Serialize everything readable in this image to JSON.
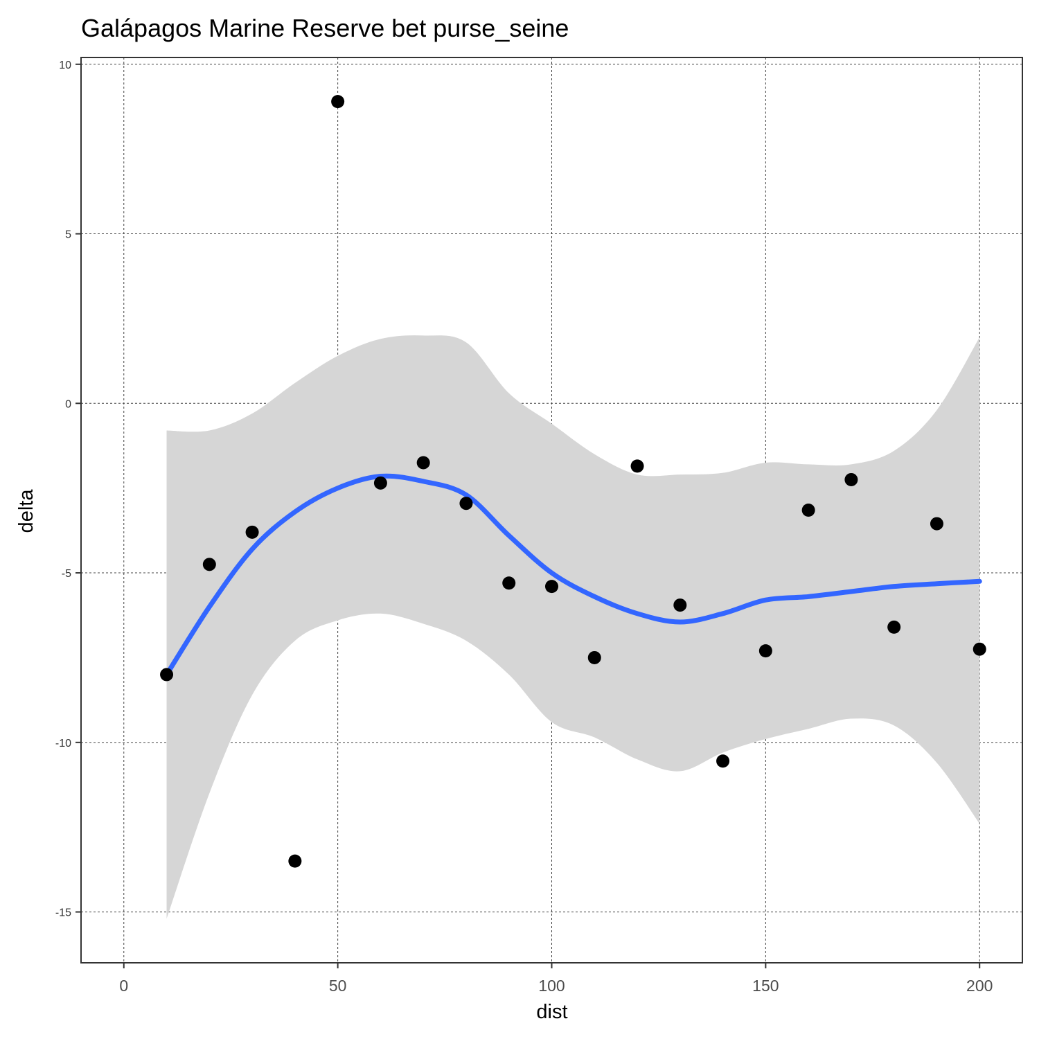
{
  "chart_data": {
    "type": "scatter",
    "title": "Galápagos Marine Reserve bet purse_seine",
    "xlabel": "dist",
    "ylabel": "delta",
    "xlim": [
      -10,
      210
    ],
    "ylim": [
      -16.5,
      10.2
    ],
    "x_ticks": [
      0,
      50,
      100,
      150,
      200
    ],
    "x_tick_labels": [
      "0",
      "50",
      "100",
      "150",
      "200"
    ],
    "y_ticks": [
      10,
      5,
      0,
      -5,
      -10,
      -15
    ],
    "y_tick_labels": [
      "10",
      "5",
      "0",
      "-5",
      "-10",
      "-15"
    ],
    "grid": true,
    "legend": "none",
    "colors": {
      "point": "#000000",
      "smooth_line": "#3366ff",
      "confidence_band": "#d6d6d6"
    },
    "points": [
      {
        "x": 10,
        "y": -8.0
      },
      {
        "x": 20,
        "y": -4.75
      },
      {
        "x": 30,
        "y": -3.8
      },
      {
        "x": 40,
        "y": -13.5
      },
      {
        "x": 50,
        "y": 8.9
      },
      {
        "x": 60,
        "y": -2.35
      },
      {
        "x": 70,
        "y": -1.75
      },
      {
        "x": 80,
        "y": -2.95
      },
      {
        "x": 90,
        "y": -5.3
      },
      {
        "x": 100,
        "y": -5.4
      },
      {
        "x": 110,
        "y": -7.5
      },
      {
        "x": 120,
        "y": -1.85
      },
      {
        "x": 130,
        "y": -5.95
      },
      {
        "x": 140,
        "y": -10.55
      },
      {
        "x": 150,
        "y": -7.3
      },
      {
        "x": 160,
        "y": -3.15
      },
      {
        "x": 170,
        "y": -2.25
      },
      {
        "x": 180,
        "y": -6.6
      },
      {
        "x": 190,
        "y": -3.55
      },
      {
        "x": 200,
        "y": -7.25
      }
    ],
    "smooth": [
      {
        "x": 10,
        "y": -8.0
      },
      {
        "x": 20,
        "y": -6.0
      },
      {
        "x": 30,
        "y": -4.3
      },
      {
        "x": 40,
        "y": -3.2
      },
      {
        "x": 50,
        "y": -2.5
      },
      {
        "x": 60,
        "y": -2.15
      },
      {
        "x": 70,
        "y": -2.3
      },
      {
        "x": 80,
        "y": -2.7
      },
      {
        "x": 90,
        "y": -3.9
      },
      {
        "x": 100,
        "y": -5.0
      },
      {
        "x": 110,
        "y": -5.7
      },
      {
        "x": 120,
        "y": -6.2
      },
      {
        "x": 130,
        "y": -6.45
      },
      {
        "x": 140,
        "y": -6.2
      },
      {
        "x": 150,
        "y": -5.8
      },
      {
        "x": 160,
        "y": -5.7
      },
      {
        "x": 170,
        "y": -5.55
      },
      {
        "x": 180,
        "y": -5.4
      },
      {
        "x": 190,
        "y": -5.32
      },
      {
        "x": 200,
        "y": -5.25
      }
    ],
    "band_upper": [
      {
        "x": 10,
        "y": -0.8
      },
      {
        "x": 20,
        "y": -0.8
      },
      {
        "x": 30,
        "y": -0.3
      },
      {
        "x": 40,
        "y": 0.6
      },
      {
        "x": 50,
        "y": 1.4
      },
      {
        "x": 60,
        "y": 1.9
      },
      {
        "x": 70,
        "y": 2.0
      },
      {
        "x": 80,
        "y": 1.8
      },
      {
        "x": 90,
        "y": 0.3
      },
      {
        "x": 100,
        "y": -0.6
      },
      {
        "x": 110,
        "y": -1.5
      },
      {
        "x": 120,
        "y": -2.1
      },
      {
        "x": 130,
        "y": -2.1
      },
      {
        "x": 140,
        "y": -2.05
      },
      {
        "x": 150,
        "y": -1.75
      },
      {
        "x": 160,
        "y": -1.8
      },
      {
        "x": 170,
        "y": -1.8
      },
      {
        "x": 180,
        "y": -1.4
      },
      {
        "x": 190,
        "y": -0.2
      },
      {
        "x": 200,
        "y": 1.95
      }
    ],
    "band_lower": [
      {
        "x": 10,
        "y": -15.2
      },
      {
        "x": 20,
        "y": -11.5
      },
      {
        "x": 30,
        "y": -8.6
      },
      {
        "x": 40,
        "y": -7.0
      },
      {
        "x": 50,
        "y": -6.4
      },
      {
        "x": 60,
        "y": -6.2
      },
      {
        "x": 70,
        "y": -6.5
      },
      {
        "x": 80,
        "y": -7.0
      },
      {
        "x": 90,
        "y": -8.0
      },
      {
        "x": 100,
        "y": -9.4
      },
      {
        "x": 110,
        "y": -9.85
      },
      {
        "x": 120,
        "y": -10.5
      },
      {
        "x": 130,
        "y": -10.85
      },
      {
        "x": 140,
        "y": -10.3
      },
      {
        "x": 150,
        "y": -9.9
      },
      {
        "x": 160,
        "y": -9.6
      },
      {
        "x": 170,
        "y": -9.3
      },
      {
        "x": 180,
        "y": -9.5
      },
      {
        "x": 190,
        "y": -10.6
      },
      {
        "x": 200,
        "y": -12.4
      }
    ]
  }
}
